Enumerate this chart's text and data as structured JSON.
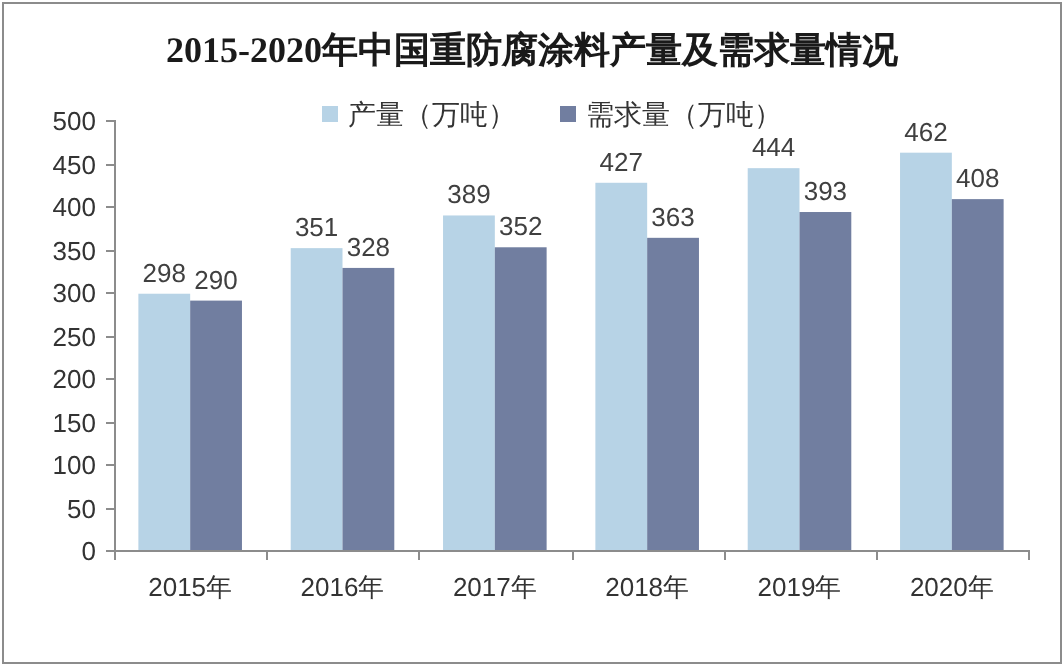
{
  "chart_data": {
    "type": "bar",
    "title": "2015-2020年中国重防腐涂料产量及需求量情况",
    "categories": [
      "2015年",
      "2016年",
      "2017年",
      "2018年",
      "2019年",
      "2020年"
    ],
    "series": [
      {
        "name": "产量（万吨）",
        "color": "#b7d3e6",
        "values": [
          298,
          351,
          389,
          427,
          444,
          462
        ]
      },
      {
        "name": "需求量（万吨）",
        "color": "#717ea0",
        "values": [
          290,
          328,
          352,
          363,
          393,
          408
        ]
      }
    ],
    "ylim": [
      0,
      500
    ],
    "yticks": [
      0,
      50,
      100,
      150,
      200,
      250,
      300,
      350,
      400,
      450,
      500
    ],
    "legend": "top",
    "data_labels": true
  }
}
